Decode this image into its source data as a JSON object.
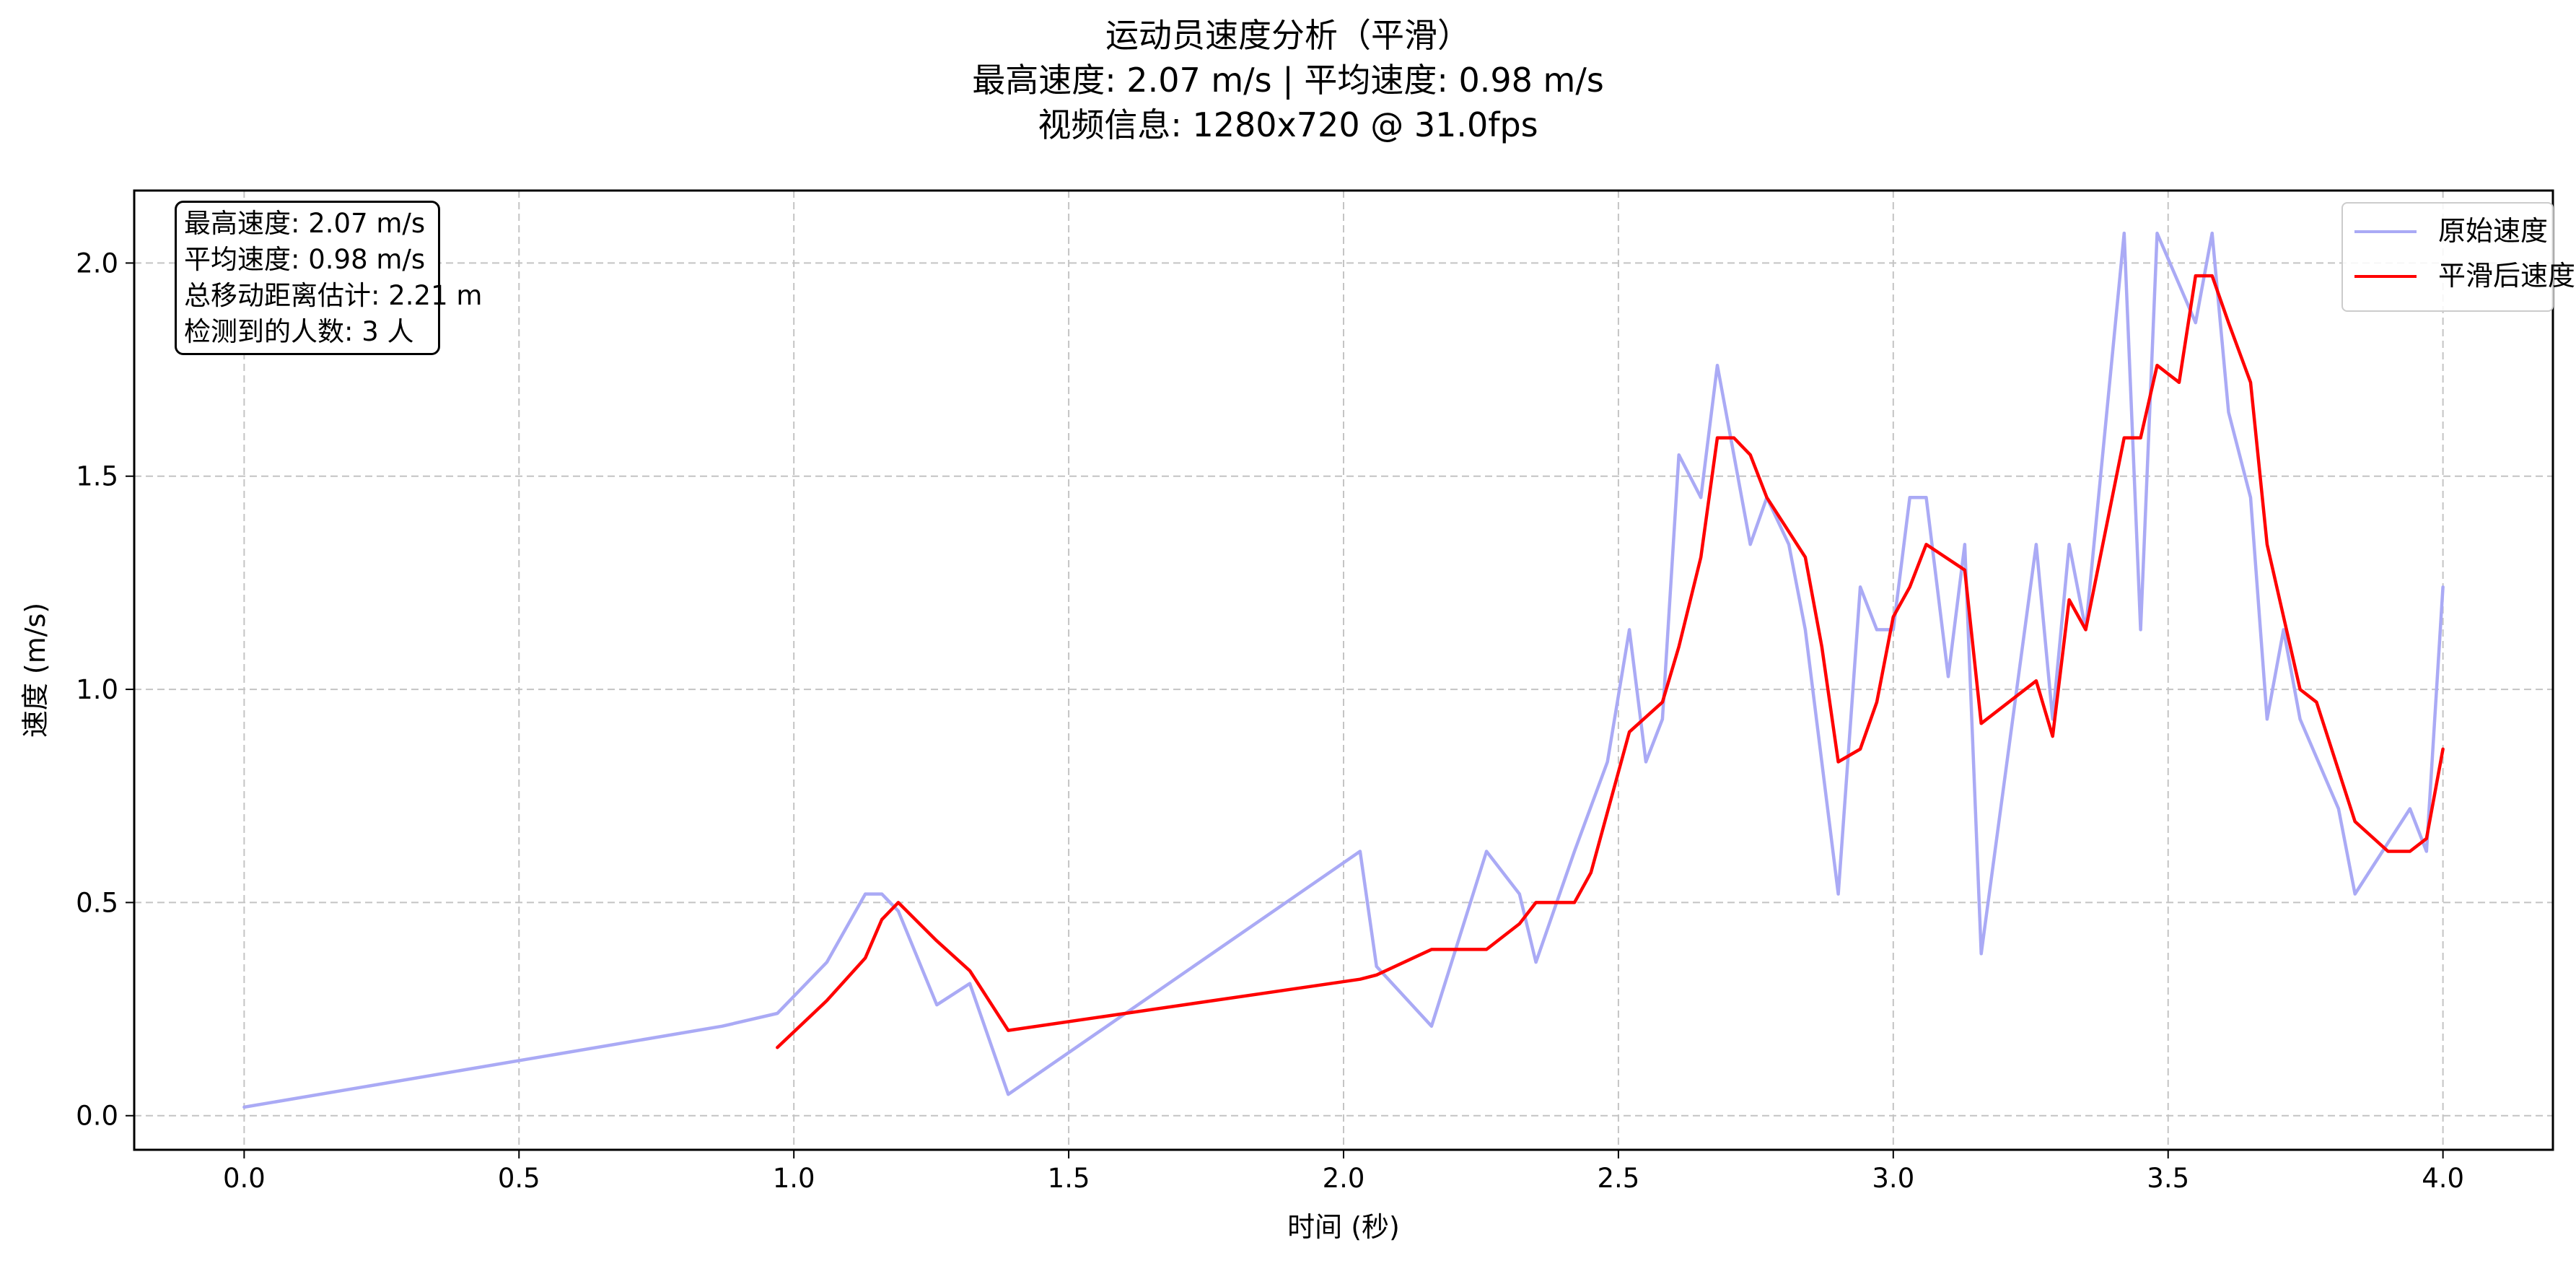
{
  "chart_data": {
    "type": "line",
    "title": [
      "运动员速度分析（平滑）",
      "最高速度: 2.07 m/s | 平均速度: 0.98 m/s",
      "视频信息: 1280x720 @ 31.0fps"
    ],
    "xlabel": "时间 (秒)",
    "ylabel": "速度 (m/s)",
    "xlim": [
      -0.2,
      4.2
    ],
    "ylim": [
      -0.08,
      2.17
    ],
    "xticks": [
      0.0,
      0.5,
      1.0,
      1.5,
      2.0,
      2.5,
      3.0,
      3.5,
      4.0
    ],
    "yticks": [
      0.0,
      0.5,
      1.0,
      1.5,
      2.0
    ],
    "grid": true,
    "legend_position": "top-right",
    "annotation": [
      "最高速度: 2.07 m/s",
      "平均速度: 0.98 m/s",
      "总移动距离估计: 2.21 m",
      "检测到的人数: 3 人"
    ],
    "series": [
      {
        "name": "原始速度",
        "color": "#aaaaf5",
        "x": [
          0.0,
          0.87,
          0.97,
          1.06,
          1.13,
          1.16,
          1.19,
          1.26,
          1.32,
          1.39,
          2.03,
          2.06,
          2.16,
          2.26,
          2.32,
          2.35,
          2.42,
          2.48,
          2.52,
          2.55,
          2.58,
          2.61,
          2.65,
          2.68,
          2.71,
          2.74,
          2.77,
          2.81,
          2.84,
          2.9,
          2.94,
          2.97,
          3.0,
          3.03,
          3.06,
          3.1,
          3.13,
          3.16,
          3.26,
          3.29,
          3.32,
          3.35,
          3.42,
          3.45,
          3.48,
          3.55,
          3.58,
          3.61,
          3.65,
          3.68,
          3.71,
          3.74,
          3.81,
          3.84,
          3.94,
          3.97,
          4.0
        ],
        "y": [
          0.02,
          0.21,
          0.24,
          0.36,
          0.52,
          0.52,
          0.48,
          0.26,
          0.31,
          0.05,
          0.62,
          0.35,
          0.21,
          0.62,
          0.52,
          0.36,
          0.62,
          0.83,
          1.14,
          0.83,
          0.93,
          1.55,
          1.45,
          1.76,
          1.55,
          1.34,
          1.45,
          1.34,
          1.14,
          0.52,
          1.24,
          1.14,
          1.14,
          1.45,
          1.45,
          1.03,
          1.34,
          0.38,
          1.34,
          0.93,
          1.34,
          1.14,
          2.07,
          1.14,
          2.07,
          1.86,
          2.07,
          1.65,
          1.45,
          0.93,
          1.14,
          0.93,
          0.72,
          0.52,
          0.72,
          0.62,
          1.24
        ]
      },
      {
        "name": "平滑后速度",
        "color": "#ff0000",
        "x": [
          0.97,
          1.06,
          1.13,
          1.16,
          1.19,
          1.26,
          1.32,
          1.39,
          2.03,
          2.06,
          2.16,
          2.26,
          2.32,
          2.35,
          2.42,
          2.45,
          2.52,
          2.58,
          2.61,
          2.65,
          2.68,
          2.71,
          2.74,
          2.77,
          2.84,
          2.87,
          2.9,
          2.94,
          2.97,
          3.0,
          3.03,
          3.06,
          3.13,
          3.16,
          3.26,
          3.29,
          3.32,
          3.35,
          3.42,
          3.45,
          3.48,
          3.52,
          3.55,
          3.58,
          3.61,
          3.65,
          3.68,
          3.74,
          3.77,
          3.84,
          3.9,
          3.94,
          3.97,
          4.0
        ],
        "y": [
          0.16,
          0.27,
          0.37,
          0.46,
          0.5,
          0.41,
          0.34,
          0.2,
          0.32,
          0.33,
          0.39,
          0.39,
          0.45,
          0.5,
          0.5,
          0.57,
          0.9,
          0.97,
          1.1,
          1.31,
          1.59,
          1.59,
          1.55,
          1.45,
          1.31,
          1.1,
          0.83,
          0.86,
          0.97,
          1.17,
          1.24,
          1.34,
          1.28,
          0.92,
          1.02,
          0.89,
          1.21,
          1.14,
          1.59,
          1.59,
          1.76,
          1.72,
          1.97,
          1.97,
          1.86,
          1.72,
          1.34,
          1.0,
          0.97,
          0.69,
          0.62,
          0.62,
          0.65,
          0.86
        ]
      }
    ]
  }
}
